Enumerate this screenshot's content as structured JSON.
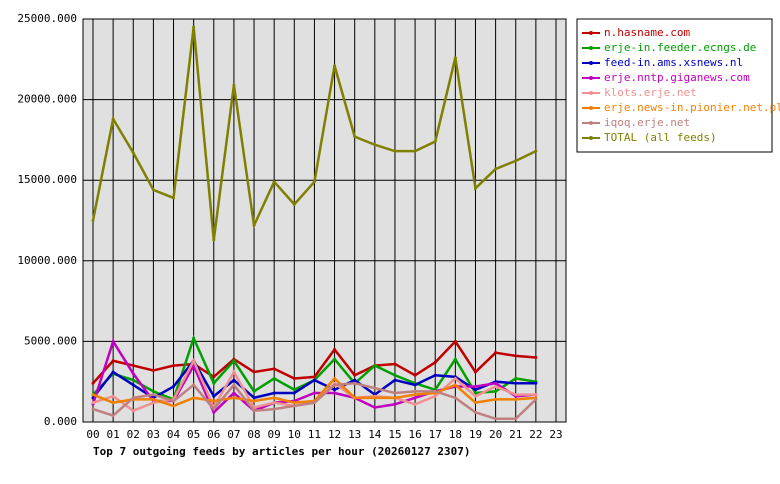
{
  "chart_data": {
    "type": "line",
    "title": "Top 7 outgoing feeds by articles per hour (20260127 2307)",
    "categories": [
      "00",
      "01",
      "02",
      "03",
      "04",
      "05",
      "06",
      "07",
      "08",
      "09",
      "10",
      "11",
      "12",
      "13",
      "14",
      "15",
      "16",
      "17",
      "18",
      "19",
      "20",
      "21",
      "22",
      "23"
    ],
    "ylim": [
      0,
      25000
    ],
    "yticks": [
      {
        "value": 0,
        "label": "0.000"
      },
      {
        "value": 5000,
        "label": "5000.000"
      },
      {
        "value": 10000,
        "label": "10000.000"
      },
      {
        "value": 15000,
        "label": "15000.000"
      },
      {
        "value": 20000,
        "label": "20000.000"
      },
      {
        "value": 25000,
        "label": "25000.000"
      }
    ],
    "grid": true,
    "legend": "right",
    "series": [
      {
        "name": "n.hasname.com",
        "color": "#c00000",
        "values": [
          2400,
          3800,
          3500,
          3200,
          3500,
          3600,
          2800,
          3900,
          3100,
          3300,
          2700,
          2800,
          4500,
          2900,
          3500,
          3600,
          2900,
          3700,
          5000,
          3100,
          4300,
          4100,
          4000,
          null
        ]
      },
      {
        "name": "erje-in.feeder.ecngs.de",
        "color": "#00a000",
        "values": [
          1700,
          3000,
          2600,
          1900,
          1400,
          5200,
          2400,
          3800,
          1900,
          2700,
          2000,
          2600,
          3900,
          2400,
          3500,
          2900,
          2400,
          2000,
          3900,
          1800,
          1900,
          2700,
          2500,
          null
        ]
      },
      {
        "name": "feed-in.ams.xsnews.nl",
        "color": "#0000c0",
        "values": [
          1500,
          3100,
          2300,
          1500,
          2200,
          3800,
          1600,
          2600,
          1500,
          1800,
          1800,
          2600,
          2000,
          2600,
          1700,
          2600,
          2300,
          2900,
          2800,
          2000,
          2500,
          2400,
          2400,
          null
        ]
      },
      {
        "name": "erje.nntp.giganews.com",
        "color": "#c000c0",
        "values": [
          1100,
          5000,
          3000,
          1300,
          1300,
          3500,
          600,
          1800,
          700,
          1200,
          1300,
          1800,
          1800,
          1500,
          900,
          1100,
          1500,
          1900,
          2200,
          2200,
          2400,
          1600,
          1700,
          null
        ]
      },
      {
        "name": "klots.erje.net",
        "color": "#f09090",
        "values": [
          1200,
          1600,
          700,
          1200,
          1400,
          3800,
          900,
          3100,
          900,
          1200,
          1000,
          1200,
          2400,
          1500,
          1600,
          1500,
          1100,
          1600,
          2700,
          1600,
          2200,
          1700,
          1700,
          null
        ]
      },
      {
        "name": "erje.news-in.pionier.net.pl",
        "color": "#f08000",
        "values": [
          1700,
          1200,
          1400,
          1400,
          1000,
          1500,
          1300,
          1500,
          1300,
          1500,
          1200,
          1300,
          2700,
          1500,
          1500,
          1500,
          1700,
          1800,
          2300,
          1200,
          1400,
          1400,
          1500,
          null
        ]
      },
      {
        "name": "iqoq.erje.net",
        "color": "#c08080",
        "values": [
          800,
          400,
          1500,
          1700,
          1300,
          2300,
          800,
          2300,
          700,
          800,
          1000,
          1200,
          2300,
          2400,
          2100,
          1800,
          1900,
          1900,
          1500,
          600,
          200,
          200,
          1400,
          null
        ]
      },
      {
        "name": "TOTAL (all feeds)",
        "color": "#808000",
        "values": [
          12500,
          18800,
          16700,
          14400,
          13900,
          24500,
          11300,
          20900,
          12200,
          14900,
          13500,
          14900,
          22100,
          17700,
          17200,
          16800,
          16800,
          17400,
          22600,
          14500,
          15700,
          16200,
          16800,
          null
        ]
      }
    ]
  }
}
